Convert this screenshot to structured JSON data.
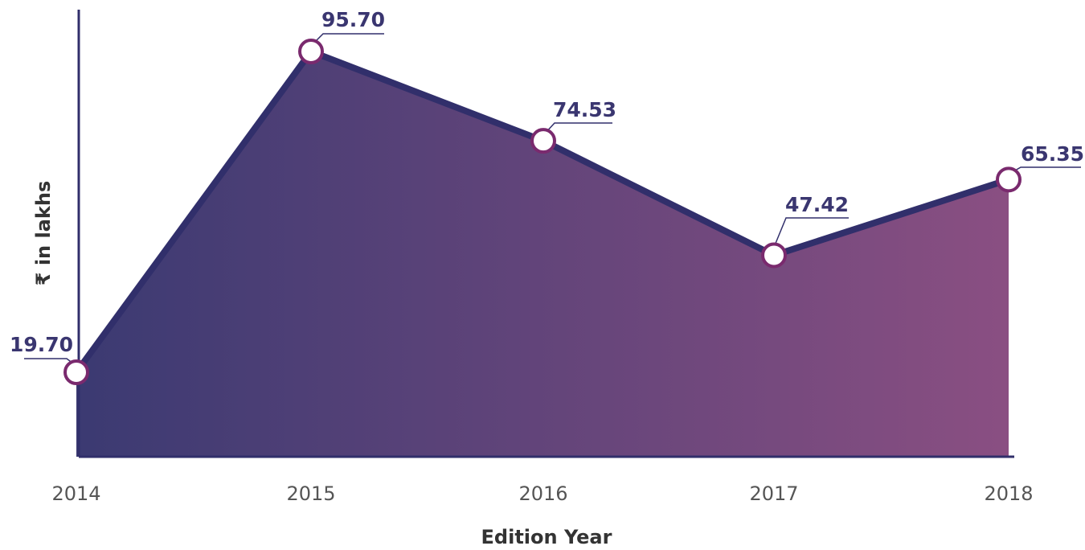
{
  "chart_data": {
    "type": "area",
    "categories": [
      "2014",
      "2015",
      "2016",
      "2017",
      "2018"
    ],
    "values": [
      19.7,
      95.7,
      74.53,
      47.42,
      65.35
    ],
    "data_labels": [
      "19.70",
      "95.70",
      "74.53",
      "47.42",
      "65.35"
    ],
    "xlabel": "Edition Year",
    "ylabel": "₹ in lakhs",
    "grid": false,
    "legend": "none",
    "colors": {
      "fill_start": "#3b3a72",
      "fill_end": "#8a4f82",
      "line": "#312f6b",
      "marker_stroke": "#7a2a6e",
      "label": "#3a3670"
    }
  }
}
